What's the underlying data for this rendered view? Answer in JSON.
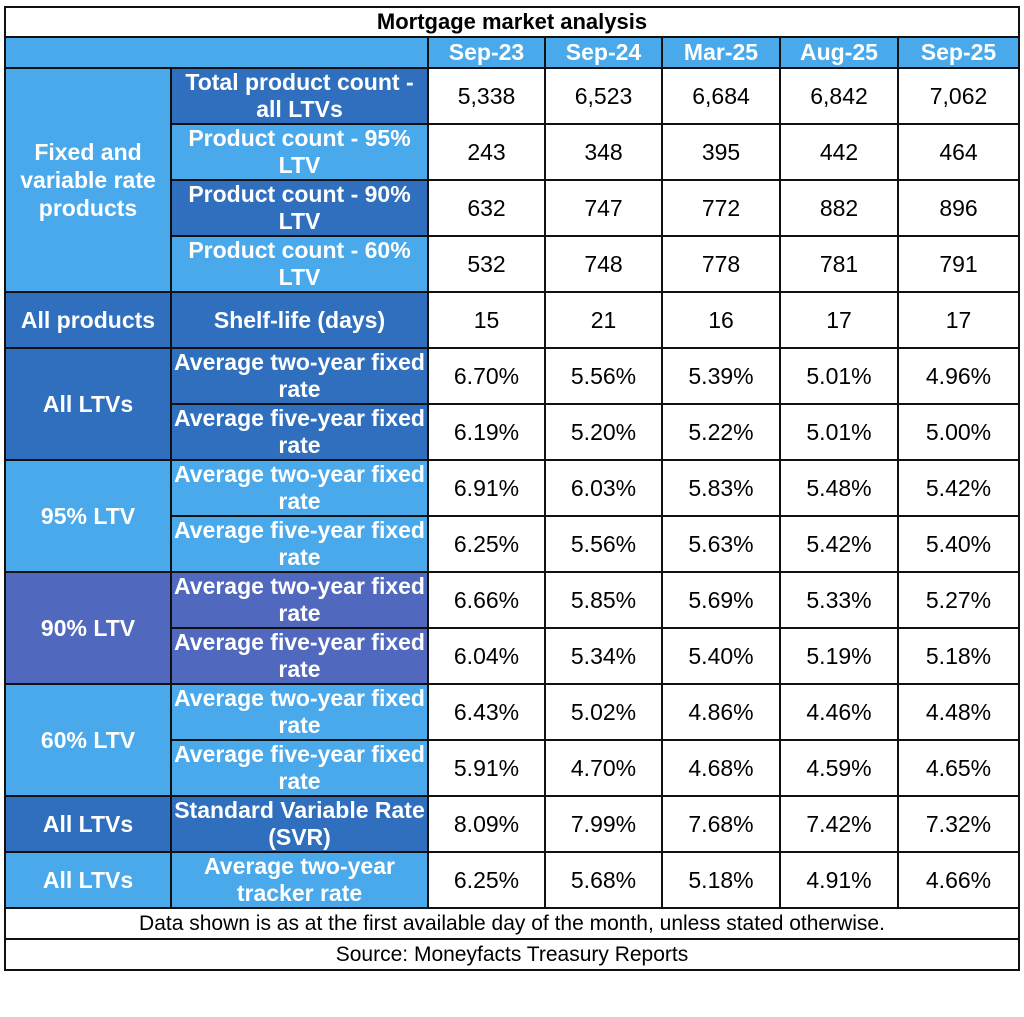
{
  "chart_data": {
    "type": "table",
    "title": "Mortgage market analysis",
    "columns": [
      "Sep-23",
      "Sep-24",
      "Mar-25",
      "Aug-25",
      "Sep-25"
    ],
    "groups": [
      {
        "label": "Fixed and variable rate products",
        "style": "light",
        "rows": [
          {
            "label": "Total product count - all LTVs",
            "style": "dark",
            "values": [
              "5,338",
              "6,523",
              "6,684",
              "6,842",
              "7,062"
            ]
          },
          {
            "label": "Product count - 95% LTV",
            "style": "light",
            "values": [
              "243",
              "348",
              "395",
              "442",
              "464"
            ]
          },
          {
            "label": "Product count - 90% LTV",
            "style": "dark",
            "values": [
              "632",
              "747",
              "772",
              "882",
              "896"
            ]
          },
          {
            "label": "Product count - 60% LTV",
            "style": "light",
            "values": [
              "532",
              "748",
              "778",
              "781",
              "791"
            ]
          }
        ]
      },
      {
        "label": "All products",
        "style": "dark",
        "rows": [
          {
            "label": "Shelf-life (days)",
            "style": "dark",
            "values": [
              "15",
              "21",
              "16",
              "17",
              "17"
            ]
          }
        ]
      },
      {
        "label": "All LTVs",
        "style": "dark",
        "rows": [
          {
            "label": "Average two-year fixed rate",
            "style": "dark",
            "values": [
              "6.70%",
              "5.56%",
              "5.39%",
              "5.01%",
              "4.96%"
            ]
          },
          {
            "label": "Average five-year fixed rate",
            "style": "dark",
            "values": [
              "6.19%",
              "5.20%",
              "5.22%",
              "5.01%",
              "5.00%"
            ]
          }
        ]
      },
      {
        "label": "95% LTV",
        "style": "light",
        "rows": [
          {
            "label": "Average two-year fixed rate",
            "style": "light",
            "values": [
              "6.91%",
              "6.03%",
              "5.83%",
              "5.48%",
              "5.42%"
            ]
          },
          {
            "label": "Average five-year fixed rate",
            "style": "light",
            "values": [
              "6.25%",
              "5.56%",
              "5.63%",
              "5.42%",
              "5.40%"
            ]
          }
        ]
      },
      {
        "label": "90% LTV",
        "style": "purple",
        "rows": [
          {
            "label": "Average two-year fixed rate",
            "style": "purple",
            "values": [
              "6.66%",
              "5.85%",
              "5.69%",
              "5.33%",
              "5.27%"
            ]
          },
          {
            "label": "Average five-year fixed rate",
            "style": "purple",
            "values": [
              "6.04%",
              "5.34%",
              "5.40%",
              "5.19%",
              "5.18%"
            ]
          }
        ]
      },
      {
        "label": "60% LTV",
        "style": "light",
        "rows": [
          {
            "label": "Average two-year fixed rate",
            "style": "light",
            "values": [
              "6.43%",
              "5.02%",
              "4.86%",
              "4.46%",
              "4.48%"
            ]
          },
          {
            "label": "Average five-year fixed rate",
            "style": "light",
            "values": [
              "5.91%",
              "4.70%",
              "4.68%",
              "4.59%",
              "4.65%"
            ]
          }
        ]
      },
      {
        "label": "All LTVs",
        "style": "dark",
        "rows": [
          {
            "label": "Standard Variable Rate (SVR)",
            "style": "dark",
            "values": [
              "8.09%",
              "7.99%",
              "7.68%",
              "7.42%",
              "7.32%"
            ]
          }
        ]
      },
      {
        "label": "All LTVs",
        "style": "light",
        "rows": [
          {
            "label": "Average two-year tracker rate",
            "style": "light",
            "values": [
              "6.25%",
              "5.68%",
              "5.18%",
              "4.91%",
              "4.66%"
            ]
          }
        ]
      }
    ],
    "notes": [
      "Data shown is as at the first available day of the month, unless stated otherwise.",
      "Source: Moneyfacts Treasury Reports"
    ]
  },
  "colors": {
    "light": "#4aa9ea",
    "dark": "#2f6fbd",
    "purple": "#5068bd"
  }
}
